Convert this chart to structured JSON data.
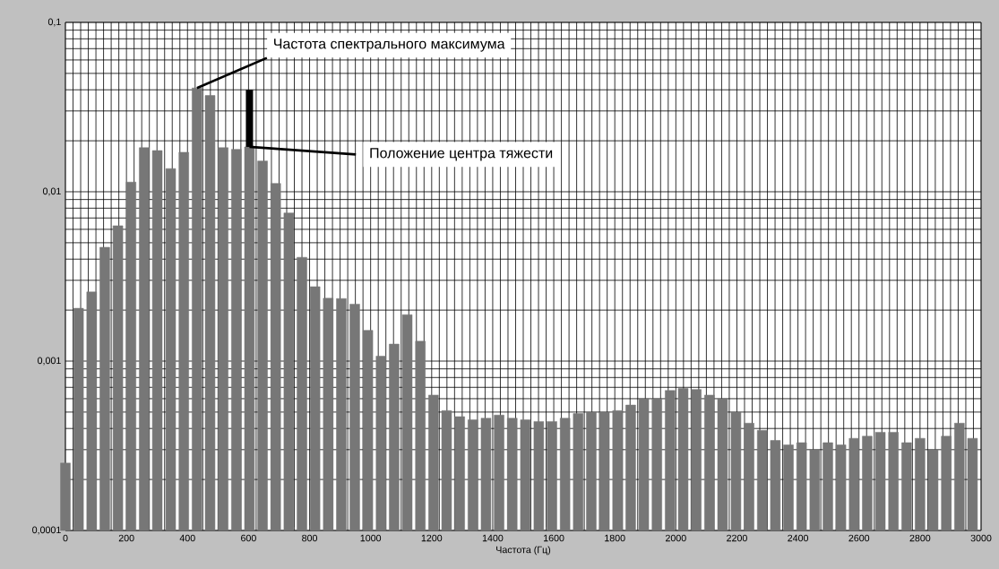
{
  "chart_data": {
    "type": "bar",
    "xlabel": "Частота (Гц)",
    "log": "y",
    "grid": true,
    "x": [
      0,
      43,
      86,
      129,
      172,
      215,
      258,
      301,
      345,
      388,
      431,
      474,
      517,
      560,
      603,
      646,
      689,
      732,
      775,
      818,
      861,
      904,
      948,
      991,
      1034,
      1077,
      1120,
      1163,
      1206,
      1249,
      1292,
      1335,
      1378,
      1421,
      1464,
      1507,
      1551,
      1594,
      1637,
      1680,
      1723,
      1766,
      1809,
      1852,
      1895,
      1938,
      1981,
      2024,
      2067,
      2110,
      2153,
      2197,
      2240,
      2283,
      2326,
      2369,
      2412,
      2455,
      2498,
      2541,
      2584,
      2627,
      2670,
      2713,
      2756,
      2800,
      2843,
      2886,
      2929,
      2972
    ],
    "series": [
      {
        "color": "#777777",
        "values": [
          0.00025,
          0.00205,
          0.00256,
          0.0047,
          0.0063,
          0.0114,
          0.0182,
          0.0175,
          0.0137,
          0.0171,
          0.041,
          0.037,
          0.0182,
          0.0178,
          0.0184,
          0.0152,
          0.0112,
          0.0075,
          0.0041,
          0.00275,
          0.00235,
          0.00234,
          0.00217,
          0.00152,
          0.00107,
          0.00126,
          0.00188,
          0.00131,
          0.00063,
          0.00051,
          0.00047,
          0.00045,
          0.00046,
          0.00048,
          0.00046,
          0.00045,
          0.00044,
          0.00044,
          0.00046,
          0.00049,
          0.0005,
          0.0005,
          0.00051,
          0.00055,
          0.0006,
          0.0006,
          0.00067,
          0.00069,
          0.00068,
          0.00063,
          0.0006,
          0.0005,
          0.00043,
          0.00039,
          0.00034,
          0.00032,
          0.00033,
          0.0003,
          0.00033,
          0.00032,
          0.00035,
          0.00036,
          0.00038,
          0.00038,
          0.00033,
          0.00035,
          0.0003,
          0.00036,
          0.00043,
          0.00035
        ]
      },
      {
        "type": "line",
        "color": "#000000",
        "x": [
          603,
          603
        ],
        "values": [
          0.0184,
          0.04
        ]
      }
    ],
    "xlim": [
      0,
      3000
    ],
    "xticks": [
      0,
      200,
      400,
      600,
      800,
      1000,
      1200,
      1400,
      1600,
      1800,
      2000,
      2200,
      2400,
      2600,
      2800,
      3000
    ],
    "ylim": [
      0.0001,
      0.1
    ],
    "yticks": [
      {
        "value": 0.0001,
        "label": "0,0001"
      },
      {
        "value": 0.001,
        "label": "0,001"
      },
      {
        "value": 0.01,
        "label": "0,01"
      },
      {
        "value": 0.1,
        "label": "0,1"
      }
    ],
    "annotations": [
      {
        "text": "Частота спектрального максимума",
        "x": 431,
        "y": 0.041
      },
      {
        "text": "Положение центра тяжести",
        "x": 603,
        "y": 0.0184
      }
    ]
  }
}
